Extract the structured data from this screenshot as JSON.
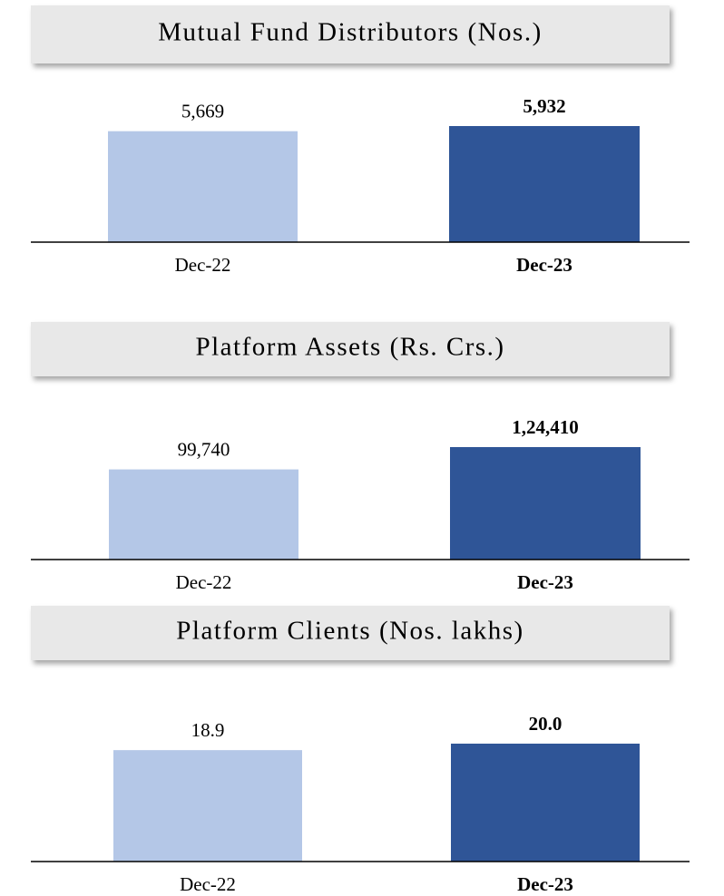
{
  "chart_data": [
    {
      "type": "bar",
      "title": "Mutual Fund Distributors (Nos.)",
      "categories": [
        "Dec-22",
        "Dec-23"
      ],
      "values": [
        5669,
        5932
      ],
      "value_labels": [
        "5,669",
        "5,932"
      ],
      "colors": [
        "#b4c7e7",
        "#2f5597"
      ]
    },
    {
      "type": "bar",
      "title": "Platform Assets (Rs. Crs.)",
      "categories": [
        "Dec-22",
        "Dec-23"
      ],
      "values": [
        99740,
        124410
      ],
      "value_labels": [
        "99,740",
        "1,24,410"
      ],
      "colors": [
        "#b4c7e7",
        "#2f5597"
      ]
    },
    {
      "type": "bar",
      "title": "Platform Clients (Nos. lakhs)",
      "categories": [
        "Dec-22",
        "Dec-23"
      ],
      "values": [
        18.9,
        20.0
      ],
      "value_labels": [
        "18.9",
        "20.0"
      ],
      "colors": [
        "#b4c7e7",
        "#2f5597"
      ]
    }
  ]
}
